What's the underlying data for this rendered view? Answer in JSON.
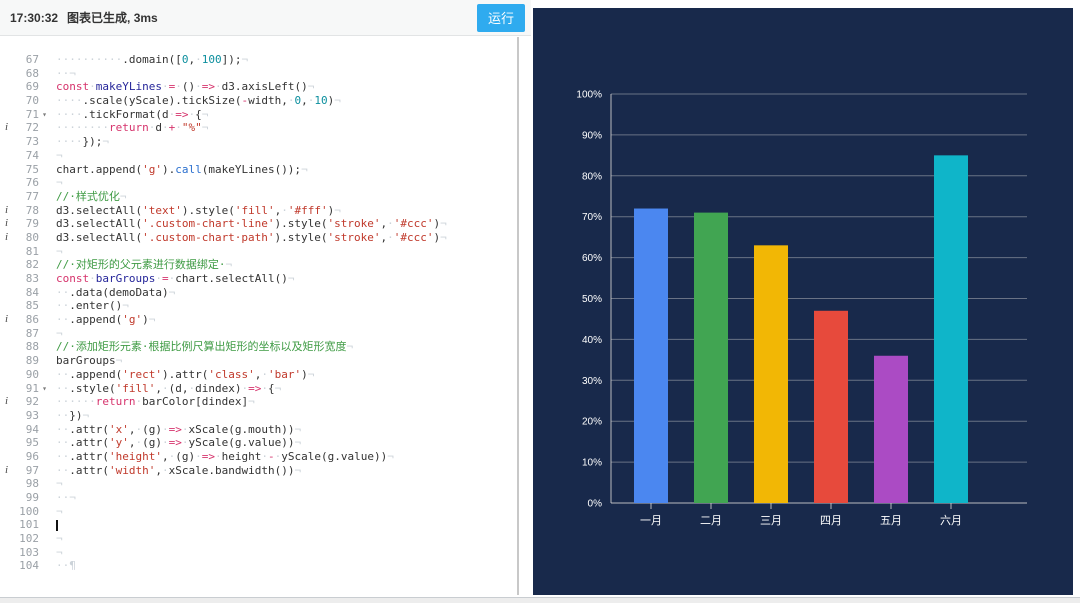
{
  "toolbar": {
    "time": "17:30:32",
    "message": "图表已生成, 3ms",
    "run_label": "运行"
  },
  "editor": {
    "lines": [
      {
        "n": 67,
        "t": [
          [
            "ws",
            "··········"
          ],
          [
            "plain",
            ".domain(["
          ],
          [
            "num",
            "0"
          ],
          [
            "plain",
            ","
          ],
          [
            "ws",
            "·"
          ],
          [
            "num",
            "100"
          ],
          [
            "plain",
            "]);"
          ],
          [
            "eol",
            "¬"
          ]
        ]
      },
      {
        "n": 68,
        "t": [
          [
            "ws",
            "··"
          ],
          [
            "eol",
            "¬"
          ]
        ]
      },
      {
        "n": 69,
        "t": [
          [
            "kw",
            "const"
          ],
          [
            "ws",
            "·"
          ],
          [
            "def",
            "makeYLines"
          ],
          [
            "ws",
            "·"
          ],
          [
            "op",
            "="
          ],
          [
            "ws",
            "·"
          ],
          [
            "plain",
            "()"
          ],
          [
            "ws",
            "·"
          ],
          [
            "op",
            "=>"
          ],
          [
            "ws",
            "·"
          ],
          [
            "plain",
            "d3.axisLeft()"
          ],
          [
            "eol",
            "¬"
          ]
        ]
      },
      {
        "n": 70,
        "t": [
          [
            "ws",
            "····"
          ],
          [
            "plain",
            ".scale(yScale).tickSize("
          ],
          [
            "op",
            "-"
          ],
          [
            "plain",
            "width,"
          ],
          [
            "ws",
            "·"
          ],
          [
            "num",
            "0"
          ],
          [
            "plain",
            ","
          ],
          [
            "ws",
            "·"
          ],
          [
            "num",
            "10"
          ],
          [
            "plain",
            ")"
          ],
          [
            "eol",
            "¬"
          ]
        ]
      },
      {
        "n": 71,
        "f": true,
        "t": [
          [
            "ws",
            "····"
          ],
          [
            "plain",
            ".tickFormat(d"
          ],
          [
            "ws",
            "·"
          ],
          [
            "op",
            "=>"
          ],
          [
            "ws",
            "·"
          ],
          [
            "plain",
            "{"
          ],
          [
            "eol",
            "¬"
          ]
        ]
      },
      {
        "n": 72,
        "m": "i",
        "t": [
          [
            "ws",
            "········"
          ],
          [
            "kw",
            "return"
          ],
          [
            "ws",
            "·"
          ],
          [
            "plain",
            "d"
          ],
          [
            "ws",
            "·"
          ],
          [
            "op",
            "+"
          ],
          [
            "ws",
            "·"
          ],
          [
            "str",
            "\"%\""
          ],
          [
            "eol",
            "¬"
          ]
        ]
      },
      {
        "n": 73,
        "t": [
          [
            "ws",
            "····"
          ],
          [
            "plain",
            "});"
          ],
          [
            "eol",
            "¬"
          ]
        ]
      },
      {
        "n": 74,
        "t": [
          [
            "eol",
            "¬"
          ]
        ]
      },
      {
        "n": 75,
        "t": [
          [
            "plain",
            "chart.append("
          ],
          [
            "str",
            "'g'"
          ],
          [
            "plain",
            ")."
          ],
          [
            "fn",
            "call"
          ],
          [
            "plain",
            "(makeYLines());"
          ],
          [
            "eol",
            "¬"
          ]
        ]
      },
      {
        "n": 76,
        "t": [
          [
            "eol",
            "¬"
          ]
        ]
      },
      {
        "n": 77,
        "t": [
          [
            "com",
            "//·样式优化"
          ],
          [
            "eol",
            "¬"
          ]
        ]
      },
      {
        "n": 78,
        "m": "i",
        "t": [
          [
            "plain",
            "d3.selectAll("
          ],
          [
            "str",
            "'text'"
          ],
          [
            "plain",
            ").style("
          ],
          [
            "str",
            "'fill'"
          ],
          [
            "plain",
            ","
          ],
          [
            "ws",
            "·"
          ],
          [
            "str",
            "'#fff'"
          ],
          [
            "plain",
            ")"
          ],
          [
            "eol",
            "¬"
          ]
        ]
      },
      {
        "n": 79,
        "m": "i",
        "t": [
          [
            "plain",
            "d3.selectAll("
          ],
          [
            "str",
            "'.custom-chart·line'"
          ],
          [
            "plain",
            ").style("
          ],
          [
            "str",
            "'stroke'"
          ],
          [
            "plain",
            ","
          ],
          [
            "ws",
            "·"
          ],
          [
            "str",
            "'#ccc'"
          ],
          [
            "plain",
            ")"
          ],
          [
            "eol",
            "¬"
          ]
        ]
      },
      {
        "n": 80,
        "m": "i",
        "t": [
          [
            "plain",
            "d3.selectAll("
          ],
          [
            "str",
            "'.custom-chart·path'"
          ],
          [
            "plain",
            ").style("
          ],
          [
            "str",
            "'stroke'"
          ],
          [
            "plain",
            ","
          ],
          [
            "ws",
            "·"
          ],
          [
            "str",
            "'#ccc'"
          ],
          [
            "plain",
            ")"
          ],
          [
            "eol",
            "¬"
          ]
        ]
      },
      {
        "n": 81,
        "t": [
          [
            "eol",
            "¬"
          ]
        ]
      },
      {
        "n": 82,
        "t": [
          [
            "com",
            "//·对矩形的父元素进行数据绑定·"
          ],
          [
            "eol",
            "¬"
          ]
        ]
      },
      {
        "n": 83,
        "t": [
          [
            "kw",
            "const"
          ],
          [
            "ws",
            "·"
          ],
          [
            "def",
            "barGroups"
          ],
          [
            "ws",
            "·"
          ],
          [
            "op",
            "="
          ],
          [
            "ws",
            "·"
          ],
          [
            "plain",
            "chart.selectAll()"
          ],
          [
            "eol",
            "¬"
          ]
        ]
      },
      {
        "n": 84,
        "t": [
          [
            "ws",
            "··"
          ],
          [
            "plain",
            ".data(demoData)"
          ],
          [
            "eol",
            "¬"
          ]
        ]
      },
      {
        "n": 85,
        "t": [
          [
            "ws",
            "··"
          ],
          [
            "plain",
            ".enter()"
          ],
          [
            "eol",
            "¬"
          ]
        ]
      },
      {
        "n": 86,
        "m": "i",
        "t": [
          [
            "ws",
            "··"
          ],
          [
            "plain",
            ".append("
          ],
          [
            "str",
            "'g'"
          ],
          [
            "plain",
            ")"
          ],
          [
            "eol",
            "¬"
          ]
        ]
      },
      {
        "n": 87,
        "t": [
          [
            "eol",
            "¬"
          ]
        ]
      },
      {
        "n": 88,
        "t": [
          [
            "com",
            "//·添加矩形元素·根据比例尺算出矩形的坐标以及矩形宽度"
          ],
          [
            "eol",
            "¬"
          ]
        ]
      },
      {
        "n": 89,
        "t": [
          [
            "plain",
            "barGroups"
          ],
          [
            "eol",
            "¬"
          ]
        ]
      },
      {
        "n": 90,
        "t": [
          [
            "ws",
            "··"
          ],
          [
            "plain",
            ".append("
          ],
          [
            "str",
            "'rect'"
          ],
          [
            "plain",
            ").attr("
          ],
          [
            "str",
            "'class'"
          ],
          [
            "plain",
            ","
          ],
          [
            "ws",
            "·"
          ],
          [
            "str",
            "'bar'"
          ],
          [
            "plain",
            ")"
          ],
          [
            "eol",
            "¬"
          ]
        ]
      },
      {
        "n": 91,
        "f": true,
        "t": [
          [
            "ws",
            "··"
          ],
          [
            "plain",
            ".style("
          ],
          [
            "str",
            "'fill'"
          ],
          [
            "plain",
            ","
          ],
          [
            "ws",
            "·"
          ],
          [
            "plain",
            "(d,"
          ],
          [
            "ws",
            "·"
          ],
          [
            "plain",
            "dindex)"
          ],
          [
            "ws",
            "·"
          ],
          [
            "op",
            "=>"
          ],
          [
            "ws",
            "·"
          ],
          [
            "plain",
            "{"
          ],
          [
            "eol",
            "¬"
          ]
        ]
      },
      {
        "n": 92,
        "m": "i",
        "t": [
          [
            "ws",
            "······"
          ],
          [
            "kw",
            "return"
          ],
          [
            "ws",
            "·"
          ],
          [
            "plain",
            "barColor[dindex]"
          ],
          [
            "eol",
            "¬"
          ]
        ]
      },
      {
        "n": 93,
        "t": [
          [
            "ws",
            "··"
          ],
          [
            "plain",
            "})"
          ],
          [
            "eol",
            "¬"
          ]
        ]
      },
      {
        "n": 94,
        "t": [
          [
            "ws",
            "··"
          ],
          [
            "plain",
            ".attr("
          ],
          [
            "str",
            "'x'"
          ],
          [
            "plain",
            ","
          ],
          [
            "ws",
            "·"
          ],
          [
            "plain",
            "(g)"
          ],
          [
            "ws",
            "·"
          ],
          [
            "op",
            "=>"
          ],
          [
            "ws",
            "·"
          ],
          [
            "plain",
            "xScale(g.mouth))"
          ],
          [
            "eol",
            "¬"
          ]
        ]
      },
      {
        "n": 95,
        "t": [
          [
            "ws",
            "··"
          ],
          [
            "plain",
            ".attr("
          ],
          [
            "str",
            "'y'"
          ],
          [
            "plain",
            ","
          ],
          [
            "ws",
            "·"
          ],
          [
            "plain",
            "(g)"
          ],
          [
            "ws",
            "·"
          ],
          [
            "op",
            "=>"
          ],
          [
            "ws",
            "·"
          ],
          [
            "plain",
            "yScale(g.value))"
          ],
          [
            "eol",
            "¬"
          ]
        ]
      },
      {
        "n": 96,
        "t": [
          [
            "ws",
            "··"
          ],
          [
            "plain",
            ".attr("
          ],
          [
            "str",
            "'height'"
          ],
          [
            "plain",
            ","
          ],
          [
            "ws",
            "·"
          ],
          [
            "plain",
            "(g)"
          ],
          [
            "ws",
            "·"
          ],
          [
            "op",
            "=>"
          ],
          [
            "ws",
            "·"
          ],
          [
            "plain",
            "height"
          ],
          [
            "ws",
            "·"
          ],
          [
            "op",
            "-"
          ],
          [
            "ws",
            "·"
          ],
          [
            "plain",
            "yScale(g.value))"
          ],
          [
            "eol",
            "¬"
          ]
        ]
      },
      {
        "n": 97,
        "m": "i",
        "t": [
          [
            "ws",
            "··"
          ],
          [
            "plain",
            ".attr("
          ],
          [
            "str",
            "'width'"
          ],
          [
            "plain",
            ","
          ],
          [
            "ws",
            "·"
          ],
          [
            "plain",
            "xScale.bandwidth())"
          ],
          [
            "eol",
            "¬"
          ]
        ]
      },
      {
        "n": 98,
        "t": [
          [
            "eol",
            "¬"
          ]
        ]
      },
      {
        "n": 99,
        "t": [
          [
            "ws",
            "··"
          ],
          [
            "eol",
            "¬"
          ]
        ]
      },
      {
        "n": 100,
        "t": [
          [
            "eol",
            "¬"
          ]
        ]
      },
      {
        "n": 101,
        "t": [
          [
            "cursor",
            ""
          ]
        ]
      },
      {
        "n": 102,
        "t": [
          [
            "eol",
            "¬"
          ]
        ]
      },
      {
        "n": 103,
        "t": [
          [
            "eol",
            "¬"
          ]
        ]
      },
      {
        "n": 104,
        "t": [
          [
            "ws",
            "··"
          ],
          [
            "eol",
            "¶"
          ]
        ]
      }
    ]
  },
  "chart_data": {
    "type": "bar",
    "categories": [
      "一月",
      "二月",
      "三月",
      "四月",
      "五月",
      "六月"
    ],
    "values": [
      72,
      71,
      63,
      47,
      36,
      85
    ],
    "colors": [
      "#4b87f0",
      "#41a552",
      "#f2b705",
      "#e74a3c",
      "#ab4bc4",
      "#0fb5c9"
    ],
    "yticks": [
      0,
      10,
      20,
      30,
      40,
      50,
      60,
      70,
      80,
      90,
      100
    ],
    "ytick_suffix": "%",
    "ylim": [
      0,
      100
    ],
    "title": "",
    "xlabel": "",
    "ylabel": "",
    "grid": true,
    "legend": false,
    "background": "#18294b",
    "axis_color": "#cccccc",
    "text_color": "#ffffff"
  }
}
